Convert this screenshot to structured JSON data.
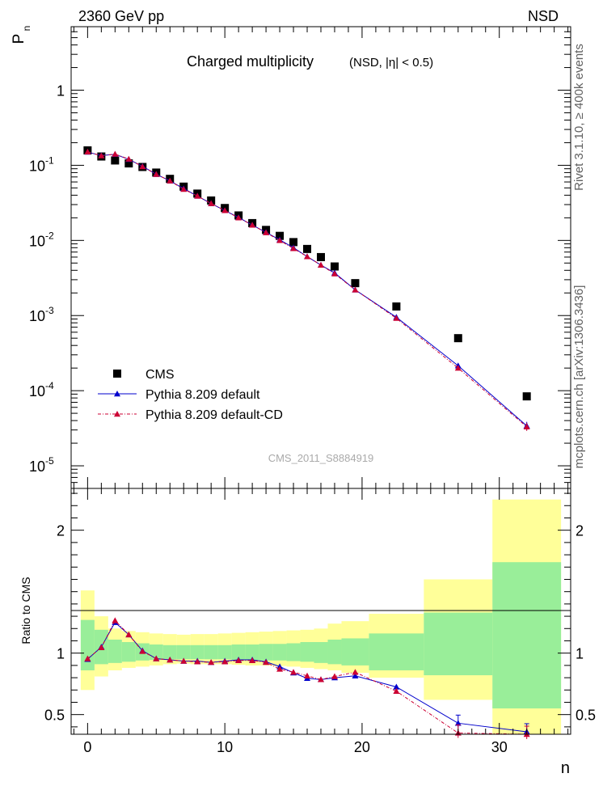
{
  "header": {
    "left": "2360 GeV pp",
    "right": "NSD"
  },
  "side_text": {
    "rivet": "Rivet 3.1.10, ≥ 400k events",
    "mcplots": "mcplots.cern.ch [arXiv:1306.3436]"
  },
  "chart_data": {
    "type": "scatter",
    "title": "Charged multiplicity",
    "subtitle": "(NSD, |η| < 0.5)",
    "analysis_tag": "CMS_2011_S8884919",
    "ylabel": "P",
    "ylabel_sub": "n",
    "xlabel": "n",
    "ratio_ylabel": "Ratio to CMS",
    "yscale": "log",
    "xlim": [
      -1.2,
      35.2
    ],
    "ylim": [
      5e-06,
      7
    ],
    "ratio_ylim": [
      0.34,
      2.34
    ],
    "x_ticks": [
      "0",
      "10",
      "20",
      "30"
    ],
    "ratio_ticks": [
      "0.5",
      "1",
      "2"
    ],
    "y_ticks": [
      {
        "base": "10",
        "exp": "-5"
      },
      {
        "base": "10",
        "exp": "-4"
      },
      {
        "base": "10",
        "exp": "-3"
      },
      {
        "base": "10",
        "exp": "-2"
      },
      {
        "base": "10",
        "exp": "-1"
      },
      {
        "base": "1",
        "exp": ""
      }
    ],
    "legend_position": "bottom-left",
    "series": [
      {
        "name": "CMS",
        "style": "data",
        "color": "#000000",
        "x": [
          0,
          1,
          2,
          3,
          4,
          5,
          6,
          7,
          8,
          9,
          10,
          11,
          12,
          13,
          14,
          15,
          16,
          17,
          18,
          19.5,
          22.5,
          27,
          32
        ],
        "values": [
          0.158,
          0.131,
          0.116,
          0.106,
          0.095,
          0.08,
          0.066,
          0.052,
          0.042,
          0.034,
          0.027,
          0.0215,
          0.017,
          0.0138,
          0.0115,
          0.0095,
          0.0077,
          0.006,
          0.0045,
          0.0027,
          0.00132,
          0.0005,
          8.4e-05
        ],
        "band_edges": [
          -0.5,
          0.5,
          1.5,
          2.5,
          3.5,
          4.5,
          5.5,
          6.5,
          7.5,
          8.5,
          9.5,
          10.5,
          11.5,
          12.5,
          13.5,
          14.5,
          15.5,
          16.5,
          17.5,
          18.5,
          20.5,
          24.5,
          29.5,
          34.5
        ],
        "stat_band": [
          [
            0.86,
            1.27
          ],
          [
            0.91,
            1.19
          ],
          [
            0.92,
            1.11
          ],
          [
            0.93,
            1.09
          ],
          [
            0.94,
            1.08
          ],
          [
            0.945,
            1.07
          ],
          [
            0.95,
            1.065
          ],
          [
            0.95,
            1.065
          ],
          [
            0.95,
            1.065
          ],
          [
            0.95,
            1.065
          ],
          [
            0.95,
            1.065
          ],
          [
            0.945,
            1.07
          ],
          [
            0.945,
            1.07
          ],
          [
            0.94,
            1.075
          ],
          [
            0.94,
            1.075
          ],
          [
            0.935,
            1.08
          ],
          [
            0.93,
            1.09
          ],
          [
            0.92,
            1.09
          ],
          [
            0.91,
            1.11
          ],
          [
            0.9,
            1.12
          ],
          [
            0.86,
            1.16
          ],
          [
            0.82,
            1.33
          ],
          [
            0.55,
            1.74
          ]
        ],
        "syst_band": [
          [
            0.7,
            1.51
          ],
          [
            0.81,
            1.3
          ],
          [
            0.86,
            1.2
          ],
          [
            0.88,
            1.18
          ],
          [
            0.89,
            1.17
          ],
          [
            0.9,
            1.16
          ],
          [
            0.91,
            1.155
          ],
          [
            0.915,
            1.15
          ],
          [
            0.91,
            1.155
          ],
          [
            0.91,
            1.155
          ],
          [
            0.91,
            1.16
          ],
          [
            0.905,
            1.165
          ],
          [
            0.9,
            1.17
          ],
          [
            0.9,
            1.175
          ],
          [
            0.895,
            1.18
          ],
          [
            0.89,
            1.185
          ],
          [
            0.88,
            1.19
          ],
          [
            0.87,
            1.2
          ],
          [
            0.86,
            1.24
          ],
          [
            0.84,
            1.26
          ],
          [
            0.8,
            1.32
          ],
          [
            0.62,
            1.6
          ],
          [
            0.34,
            2.25
          ]
        ]
      },
      {
        "name": "Pythia 8.209 default",
        "style": "solid",
        "color": "#0000cc",
        "x": [
          0,
          1,
          2,
          3,
          4,
          5,
          6,
          7,
          8,
          9,
          10,
          11,
          12,
          13,
          14,
          15,
          16,
          17,
          18,
          19.5,
          22.5,
          27,
          32
        ],
        "values": [
          0.15,
          0.135,
          0.14,
          0.12,
          0.097,
          0.076,
          0.062,
          0.049,
          0.039,
          0.031,
          0.025,
          0.0202,
          0.016,
          0.0128,
          0.0102,
          0.008,
          0.0061,
          0.0047,
          0.0037,
          0.0022,
          0.00095,
          0.000215,
          3.4e-05
        ],
        "ratio": [
          0.95,
          1.05,
          1.25,
          1.15,
          1.02,
          0.955,
          0.945,
          0.935,
          0.935,
          0.925,
          0.935,
          0.945,
          0.945,
          0.93,
          0.89,
          0.84,
          0.795,
          0.785,
          0.8,
          0.815,
          0.725,
          0.43,
          0.36
        ]
      },
      {
        "name": "Pythia 8.209 default-CD",
        "style": "dashdot",
        "color": "#cc0033",
        "x": [
          0,
          1,
          2,
          3,
          4,
          5,
          6,
          7,
          8,
          9,
          10,
          11,
          12,
          13,
          14,
          15,
          16,
          17,
          18,
          19.5,
          22.5,
          27,
          32
        ],
        "values": [
          0.151,
          0.134,
          0.141,
          0.121,
          0.096,
          0.076,
          0.062,
          0.048,
          0.039,
          0.031,
          0.025,
          0.02,
          0.016,
          0.0127,
          0.01,
          0.0078,
          0.0061,
          0.0047,
          0.0036,
          0.0022,
          0.00092,
          0.0002,
          3.3e-05
        ],
        "ratio": [
          0.955,
          1.045,
          1.265,
          1.15,
          1.015,
          0.955,
          0.945,
          0.935,
          0.93,
          0.925,
          0.93,
          0.94,
          0.94,
          0.925,
          0.87,
          0.845,
          0.815,
          0.785,
          0.81,
          0.845,
          0.69,
          0.35,
          0.34
        ]
      }
    ]
  }
}
